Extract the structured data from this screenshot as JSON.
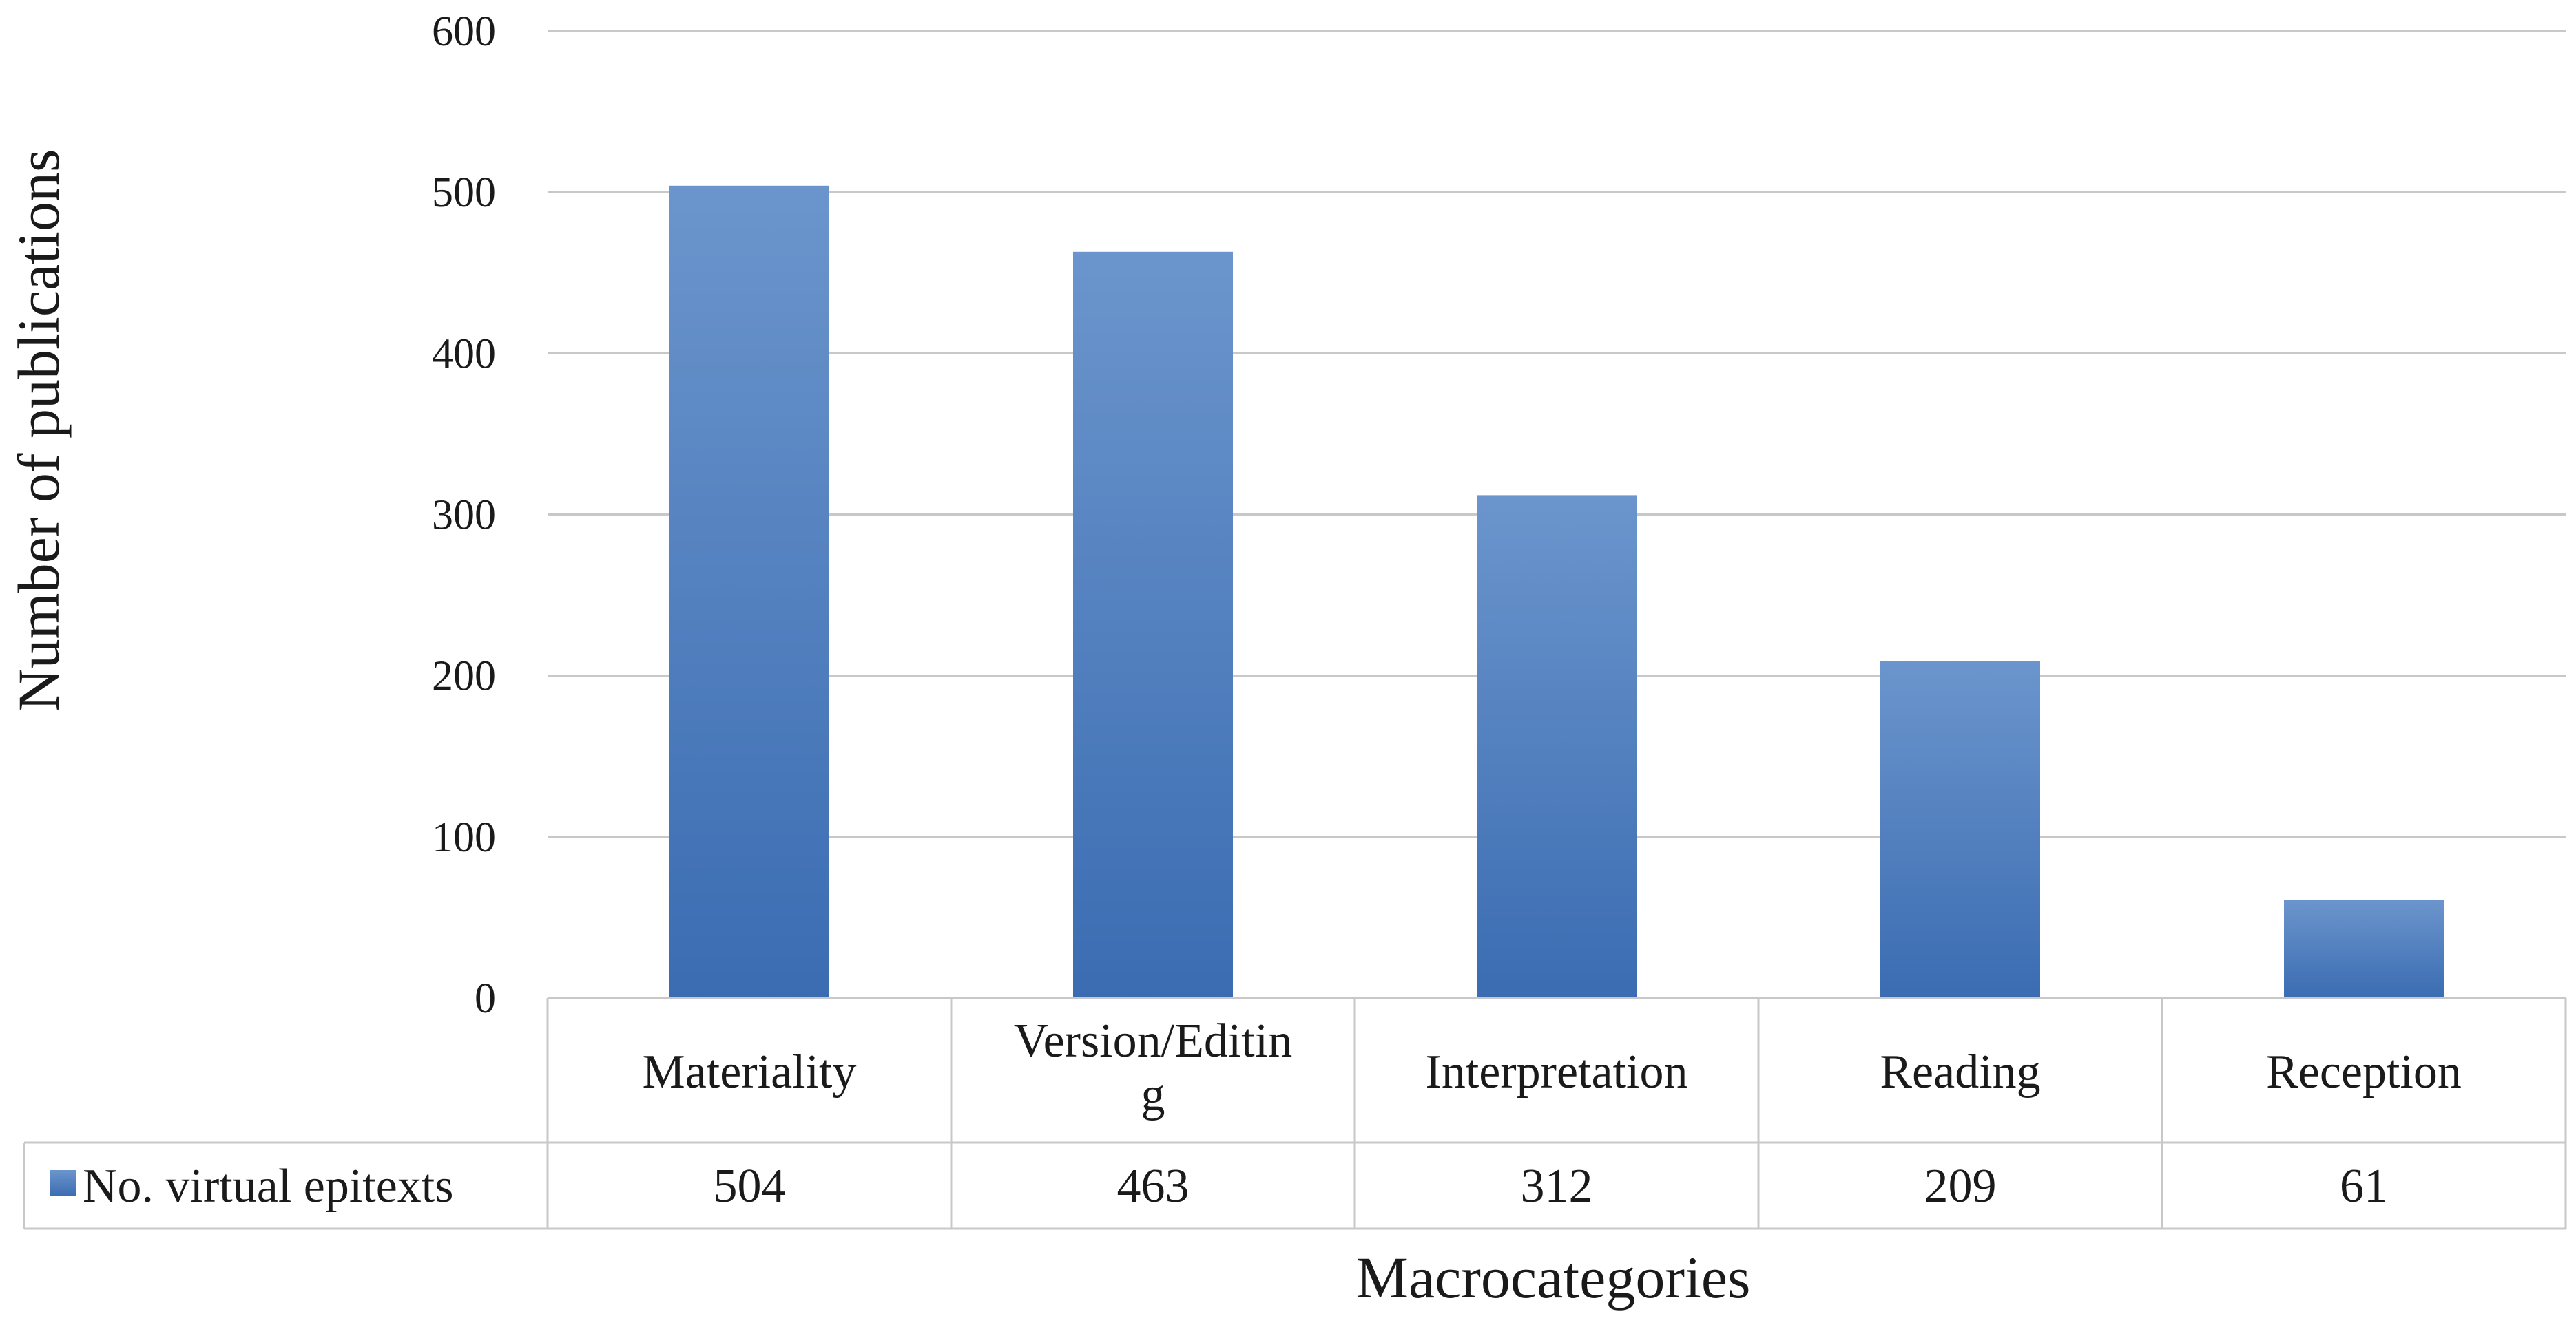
{
  "chart_data": {
    "type": "bar",
    "categories": [
      "Materiality",
      "Version/Editing",
      "Interpretation",
      "Reading",
      "Reception"
    ],
    "category_labels": [
      [
        "Materiality"
      ],
      [
        "Version/Editin",
        "g"
      ],
      [
        "Interpretation"
      ],
      [
        "Reading"
      ],
      [
        "Reception"
      ]
    ],
    "series": [
      {
        "name": "No. virtual epitexts",
        "values": [
          504,
          463,
          312,
          209,
          61
        ],
        "color": "#4a7cbf"
      }
    ],
    "ylim": [
      0,
      600
    ],
    "yticks": [
      0,
      100,
      200,
      300,
      400,
      500,
      600
    ],
    "xlabel": "Macrocategories",
    "ylabel": "Number of publications",
    "grid": true,
    "legend": "data-table",
    "data_table": true
  },
  "colors": {
    "bar": "#4a7cbf",
    "bar_dark": "#3b6cb2",
    "bar_light": "#6b95cc",
    "grid": "#c8c8c8",
    "table_border": "#c8c8c8"
  }
}
